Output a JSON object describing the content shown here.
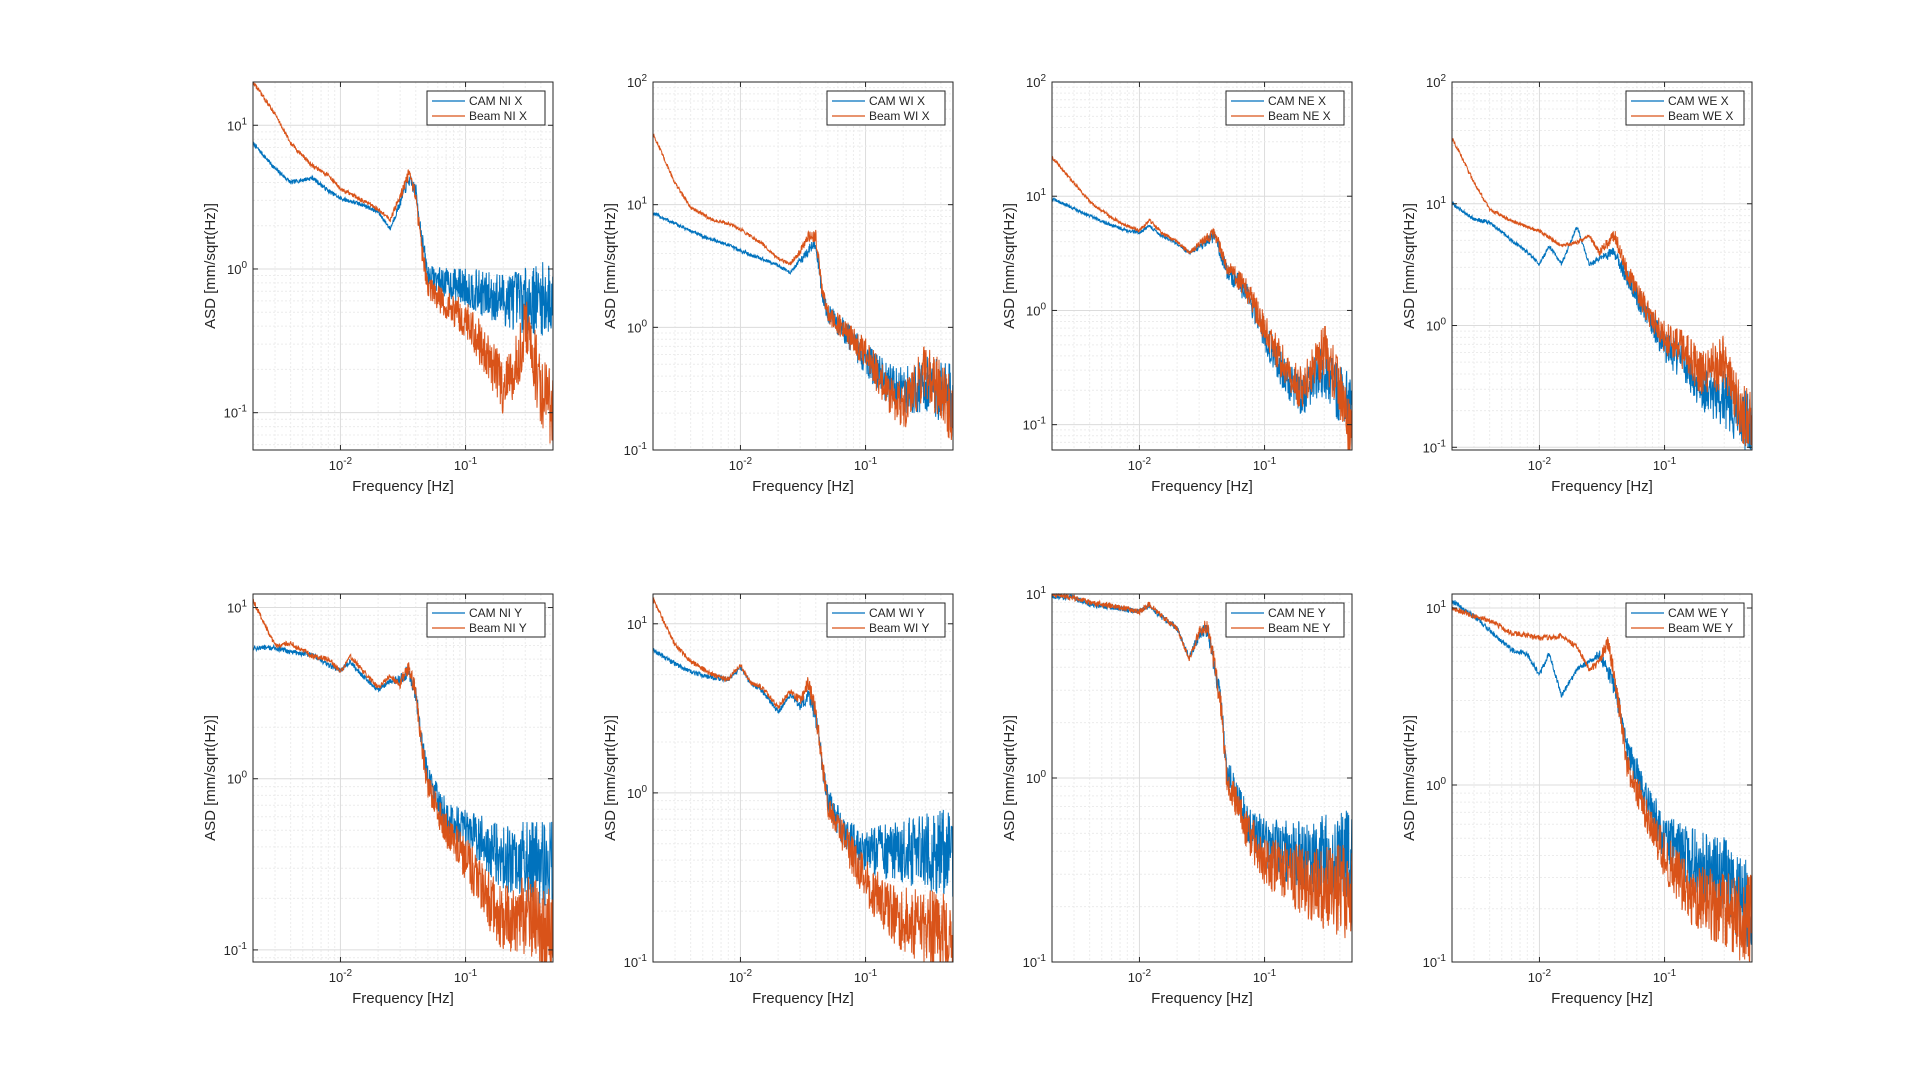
{
  "figure": {
    "background": "#ffffff",
    "series_colors": [
      "#0072BD",
      "#D95319"
    ]
  },
  "chart_data": [
    {
      "type": "line",
      "xlabel": "Frequency [Hz]",
      "ylabel": "ASD [mm/sqrt(Hz)]",
      "xscale": "log",
      "yscale": "log",
      "xlim": [
        0.002,
        0.5
      ],
      "ylim": [
        0.055,
        20
      ],
      "xticks": [
        "10^-2",
        "10^-1"
      ],
      "yticks": [
        "10^-1",
        "10^0",
        "10^1"
      ],
      "grid": true,
      "legend_position": "top-right",
      "series": [
        {
          "name": "CAM NI X",
          "x": [
            0.002,
            0.003,
            0.004,
            0.006,
            0.008,
            0.01,
            0.015,
            0.02,
            0.025,
            0.03,
            0.035,
            0.04,
            0.045,
            0.05,
            0.07,
            0.1,
            0.15,
            0.2,
            0.3,
            0.4,
            0.5
          ],
          "y": [
            7.5,
            5,
            4,
            4.3,
            3.5,
            3.1,
            2.8,
            2.5,
            1.9,
            2.9,
            4.2,
            3.5,
            1.6,
            0.9,
            0.8,
            0.75,
            0.65,
            0.62,
            0.6,
            0.62,
            0.6
          ]
        },
        {
          "name": "Beam NI X",
          "x": [
            0.002,
            0.003,
            0.004,
            0.006,
            0.008,
            0.01,
            0.015,
            0.02,
            0.025,
            0.03,
            0.035,
            0.04,
            0.045,
            0.05,
            0.07,
            0.1,
            0.15,
            0.2,
            0.25,
            0.3,
            0.4,
            0.5
          ],
          "y": [
            20,
            12,
            7.5,
            5.2,
            4.5,
            3.6,
            3.0,
            2.6,
            2.2,
            3.2,
            4.5,
            3.2,
            1.3,
            0.75,
            0.55,
            0.45,
            0.25,
            0.15,
            0.2,
            0.4,
            0.15,
            0.1
          ]
        }
      ]
    },
    {
      "type": "line",
      "xlabel": "Frequency [Hz]",
      "ylabel": "ASD [mm/sqrt(Hz)]",
      "xscale": "log",
      "yscale": "log",
      "xlim": [
        0.002,
        0.5
      ],
      "ylim": [
        0.1,
        100
      ],
      "xticks": [
        "10^-2",
        "10^-1"
      ],
      "yticks": [
        "10^-1",
        "10^0",
        "10^1",
        "10^2"
      ],
      "grid": true,
      "legend_position": "top-right",
      "series": [
        {
          "name": "CAM WI X",
          "x": [
            0.002,
            0.003,
            0.005,
            0.008,
            0.01,
            0.015,
            0.02,
            0.025,
            0.03,
            0.035,
            0.04,
            0.045,
            0.05,
            0.07,
            0.1,
            0.15,
            0.2,
            0.3,
            0.4,
            0.5
          ],
          "y": [
            8.5,
            7,
            5.5,
            4.7,
            4.2,
            3.6,
            3.2,
            2.8,
            3.5,
            4.2,
            5,
            1.8,
            1.3,
            0.9,
            0.55,
            0.35,
            0.3,
            0.35,
            0.3,
            0.28
          ]
        },
        {
          "name": "Beam WI X",
          "x": [
            0.002,
            0.003,
            0.004,
            0.006,
            0.008,
            0.01,
            0.015,
            0.02,
            0.025,
            0.03,
            0.035,
            0.04,
            0.045,
            0.05,
            0.07,
            0.1,
            0.15,
            0.2,
            0.3,
            0.4,
            0.5
          ],
          "y": [
            38,
            15,
            9.5,
            7.5,
            7,
            6.3,
            4.8,
            3.6,
            3.3,
            4.2,
            5.5,
            5.5,
            2,
            1.3,
            0.9,
            0.6,
            0.3,
            0.22,
            0.45,
            0.3,
            0.2
          ]
        }
      ]
    },
    {
      "type": "line",
      "xlabel": "Frequency [Hz]",
      "ylabel": "ASD [mm/sqrt(Hz)]",
      "xscale": "log",
      "yscale": "log",
      "xlim": [
        0.002,
        0.5
      ],
      "ylim": [
        0.06,
        100
      ],
      "xticks": [
        "10^-2",
        "10^-1"
      ],
      "yticks": [
        "10^-1",
        "10^0",
        "10^1",
        "10^2"
      ],
      "grid": true,
      "legend_position": "top-right",
      "series": [
        {
          "name": "CAM NE X",
          "x": [
            0.002,
            0.003,
            0.005,
            0.008,
            0.01,
            0.012,
            0.015,
            0.02,
            0.025,
            0.03,
            0.04,
            0.05,
            0.07,
            0.1,
            0.15,
            0.2,
            0.3,
            0.4,
            0.5
          ],
          "y": [
            9.5,
            7.8,
            6,
            5,
            4.8,
            5.5,
            4.5,
            3.8,
            3.2,
            3.6,
            4.5,
            2.2,
            1.5,
            0.6,
            0.25,
            0.18,
            0.3,
            0.18,
            0.15
          ]
        },
        {
          "name": "Beam NE X",
          "x": [
            0.002,
            0.003,
            0.004,
            0.006,
            0.008,
            0.01,
            0.012,
            0.015,
            0.02,
            0.025,
            0.03,
            0.04,
            0.05,
            0.07,
            0.1,
            0.15,
            0.2,
            0.3,
            0.4,
            0.5
          ],
          "y": [
            22,
            13,
            9,
            6.5,
            5.5,
            5,
            6.2,
            4.8,
            4,
            3.2,
            3.8,
            4.8,
            2.4,
            1.6,
            0.7,
            0.3,
            0.2,
            0.45,
            0.2,
            0.07
          ]
        }
      ]
    },
    {
      "type": "line",
      "xlabel": "Frequency [Hz]",
      "ylabel": "ASD [mm/sqrt(Hz)]",
      "xscale": "log",
      "yscale": "log",
      "xlim": [
        0.002,
        0.5
      ],
      "ylim": [
        0.095,
        100
      ],
      "xticks": [
        "10^-2",
        "10^-1"
      ],
      "yticks": [
        "10^-1",
        "10^0",
        "10^1",
        "10^2"
      ],
      "grid": true,
      "legend_position": "top-right",
      "series": [
        {
          "name": "CAM WE X",
          "x": [
            0.002,
            0.003,
            0.004,
            0.006,
            0.008,
            0.01,
            0.012,
            0.015,
            0.02,
            0.025,
            0.03,
            0.04,
            0.05,
            0.07,
            0.1,
            0.15,
            0.2,
            0.3,
            0.4,
            0.5
          ],
          "y": [
            10,
            7.5,
            7,
            5,
            4,
            3.2,
            4.5,
            3.2,
            6.5,
            3.2,
            3.5,
            4,
            2.5,
            1.3,
            0.7,
            0.45,
            0.3,
            0.25,
            0.18,
            0.15
          ]
        },
        {
          "name": "Beam WE X",
          "x": [
            0.002,
            0.003,
            0.004,
            0.006,
            0.008,
            0.01,
            0.015,
            0.02,
            0.025,
            0.03,
            0.04,
            0.05,
            0.07,
            0.1,
            0.15,
            0.2,
            0.3,
            0.4,
            0.5
          ],
          "y": [
            35,
            15,
            9,
            7.2,
            6.5,
            6,
            4.5,
            4.8,
            5.5,
            4,
            5.5,
            2.8,
            1.4,
            0.8,
            0.6,
            0.4,
            0.5,
            0.2,
            0.15
          ]
        }
      ]
    },
    {
      "type": "line",
      "xlabel": "Frequency [Hz]",
      "ylabel": "ASD [mm/sqrt(Hz)]",
      "xscale": "log",
      "yscale": "log",
      "xlim": [
        0.002,
        0.5
      ],
      "ylim": [
        0.085,
        12
      ],
      "xticks": [
        "10^-2",
        "10^-1"
      ],
      "yticks": [
        "10^-1",
        "10^0",
        "10^1"
      ],
      "grid": true,
      "legend_position": "top-right",
      "series": [
        {
          "name": "CAM NI Y",
          "x": [
            0.002,
            0.003,
            0.004,
            0.006,
            0.008,
            0.01,
            0.012,
            0.015,
            0.02,
            0.025,
            0.03,
            0.035,
            0.04,
            0.045,
            0.05,
            0.07,
            0.1,
            0.15,
            0.2,
            0.3,
            0.4,
            0.5
          ],
          "y": [
            5.8,
            5.8,
            5.5,
            5.3,
            4.6,
            4.3,
            4.8,
            4.0,
            3.3,
            3.7,
            3.8,
            4.3,
            3.2,
            1.6,
            1.0,
            0.6,
            0.48,
            0.4,
            0.35,
            0.33,
            0.32,
            0.32
          ]
        },
        {
          "name": "Beam NI Y",
          "x": [
            0.002,
            0.003,
            0.004,
            0.006,
            0.008,
            0.01,
            0.012,
            0.015,
            0.02,
            0.025,
            0.03,
            0.035,
            0.04,
            0.045,
            0.05,
            0.07,
            0.1,
            0.15,
            0.2,
            0.3,
            0.4,
            0.5
          ],
          "y": [
            11,
            6,
            6.2,
            5.2,
            5,
            4.2,
            5.2,
            4.3,
            3.4,
            4,
            3.6,
            4.5,
            3.2,
            1.5,
            0.9,
            0.5,
            0.35,
            0.2,
            0.15,
            0.16,
            0.14,
            0.12
          ]
        }
      ]
    },
    {
      "type": "line",
      "xlabel": "Frequency [Hz]",
      "ylabel": "ASD [mm/sqrt(Hz)]",
      "xscale": "log",
      "yscale": "log",
      "xlim": [
        0.002,
        0.5
      ],
      "ylim": [
        0.1,
        15
      ],
      "xticks": [
        "10^-2",
        "10^-1"
      ],
      "yticks": [
        "10^-1",
        "10^0",
        "10^1"
      ],
      "grid": true,
      "legend_position": "top-right",
      "series": [
        {
          "name": "CAM WI Y",
          "x": [
            0.002,
            0.003,
            0.004,
            0.006,
            0.008,
            0.01,
            0.012,
            0.015,
            0.02,
            0.025,
            0.03,
            0.035,
            0.04,
            0.045,
            0.05,
            0.07,
            0.1,
            0.15,
            0.2,
            0.3,
            0.4,
            0.5
          ],
          "y": [
            7,
            5.8,
            5.2,
            4.8,
            4.7,
            5.5,
            4.5,
            4.0,
            3.0,
            3.8,
            3.3,
            3.8,
            2.8,
            1.5,
            0.9,
            0.55,
            0.45,
            0.45,
            0.45,
            0.45,
            0.45,
            0.45
          ]
        },
        {
          "name": "Beam WI Y",
          "x": [
            0.002,
            0.003,
            0.004,
            0.006,
            0.008,
            0.01,
            0.012,
            0.015,
            0.02,
            0.025,
            0.03,
            0.035,
            0.04,
            0.045,
            0.05,
            0.07,
            0.1,
            0.15,
            0.2,
            0.3,
            0.4,
            0.5
          ],
          "y": [
            14,
            7.5,
            6,
            5,
            4.7,
            5.7,
            4.5,
            4.2,
            3.2,
            4,
            3.5,
            4.5,
            3.0,
            1.5,
            0.85,
            0.5,
            0.3,
            0.2,
            0.18,
            0.16,
            0.15,
            0.13
          ]
        }
      ]
    },
    {
      "type": "line",
      "xlabel": "Frequency [Hz]",
      "ylabel": "ASD [mm/sqrt(Hz)]",
      "xscale": "log",
      "yscale": "log",
      "xlim": [
        0.002,
        0.5
      ],
      "ylim": [
        0.1,
        10
      ],
      "xticks": [
        "10^-2",
        "10^-1"
      ],
      "yticks": [
        "10^-1",
        "10^0",
        "10^1"
      ],
      "grid": true,
      "legend_position": "top-right",
      "series": [
        {
          "name": "CAM NE Y",
          "x": [
            0.002,
            0.003,
            0.004,
            0.006,
            0.008,
            0.01,
            0.012,
            0.015,
            0.02,
            0.025,
            0.03,
            0.035,
            0.04,
            0.045,
            0.05,
            0.07,
            0.1,
            0.15,
            0.2,
            0.3,
            0.4,
            0.5
          ],
          "y": [
            9.8,
            9.5,
            8.8,
            8.5,
            8.2,
            8.0,
            8.6,
            7.5,
            6.5,
            4.5,
            6.0,
            6.5,
            4.0,
            2.5,
            1.1,
            0.6,
            0.45,
            0.4,
            0.38,
            0.38,
            0.38,
            0.38
          ]
        },
        {
          "name": "Beam NE Y",
          "x": [
            0.002,
            0.003,
            0.004,
            0.006,
            0.008,
            0.01,
            0.012,
            0.015,
            0.02,
            0.025,
            0.03,
            0.035,
            0.04,
            0.045,
            0.05,
            0.07,
            0.1,
            0.15,
            0.2,
            0.3,
            0.4,
            0.5
          ],
          "y": [
            10,
            9.5,
            9.0,
            8.6,
            8.3,
            8.0,
            8.8,
            7.6,
            6.5,
            4.4,
            6.2,
            6.8,
            4.0,
            2.4,
            1.0,
            0.55,
            0.35,
            0.3,
            0.28,
            0.25,
            0.25,
            0.22
          ]
        }
      ]
    },
    {
      "type": "line",
      "xlabel": "Frequency [Hz]",
      "ylabel": "ASD [mm/sqrt(Hz)]",
      "xscale": "log",
      "yscale": "log",
      "xlim": [
        0.002,
        0.5
      ],
      "ylim": [
        0.1,
        12
      ],
      "xticks": [
        "10^-2",
        "10^-1"
      ],
      "yticks": [
        "10^-1",
        "10^0",
        "10^1"
      ],
      "grid": true,
      "legend_position": "top-right",
      "series": [
        {
          "name": "CAM WE Y",
          "x": [
            0.002,
            0.003,
            0.004,
            0.006,
            0.008,
            0.01,
            0.012,
            0.015,
            0.02,
            0.025,
            0.03,
            0.035,
            0.04,
            0.045,
            0.05,
            0.07,
            0.1,
            0.15,
            0.2,
            0.3,
            0.4,
            0.5
          ],
          "y": [
            11,
            9,
            7.5,
            5.8,
            5.5,
            4.2,
            5.5,
            3.2,
            4.5,
            5.0,
            5.5,
            4.5,
            3.5,
            2.5,
            1.6,
            0.9,
            0.5,
            0.4,
            0.35,
            0.3,
            0.22,
            0.2
          ]
        },
        {
          "name": "Beam WE Y",
          "x": [
            0.002,
            0.003,
            0.004,
            0.006,
            0.008,
            0.01,
            0.012,
            0.015,
            0.02,
            0.025,
            0.03,
            0.035,
            0.04,
            0.045,
            0.05,
            0.07,
            0.1,
            0.15,
            0.2,
            0.3,
            0.4,
            0.5
          ],
          "y": [
            10,
            9,
            8.5,
            7.2,
            7.0,
            6.8,
            6.8,
            7.0,
            6.0,
            4.5,
            5.0,
            6.5,
            4.0,
            2.3,
            1.3,
            0.7,
            0.4,
            0.25,
            0.22,
            0.2,
            0.18,
            0.17
          ]
        }
      ]
    }
  ]
}
